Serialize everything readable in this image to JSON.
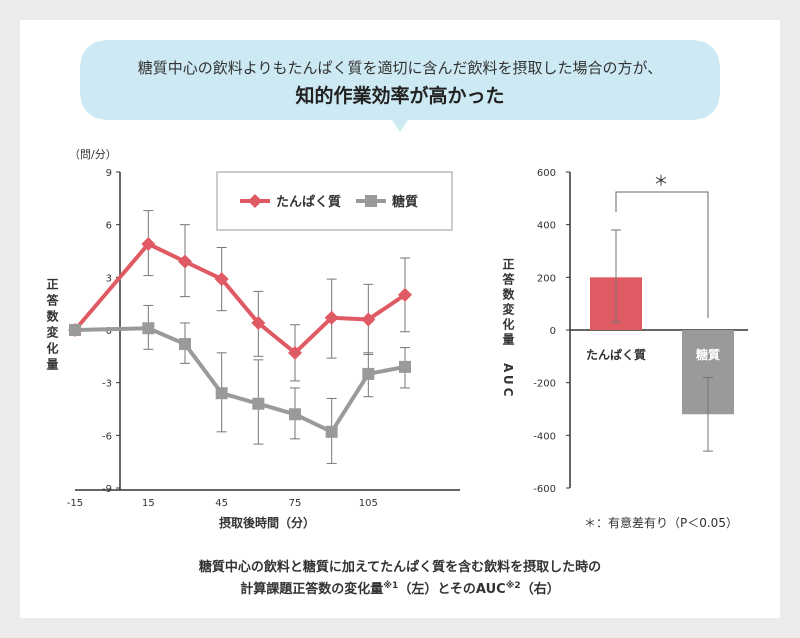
{
  "header": {
    "line1": "糖質中心の飲料よりもたんぱく質を適切に含んだ飲料を摂取した場合の方が、",
    "line2": "知的作業効率が高かった"
  },
  "caption": {
    "line1": "糖質中心の飲料と糖質に加えてたんぱく質を含む飲料を摂取した時の",
    "line2_a": "計算課題正答数の変化量",
    "note1": "※1",
    "line2_b": "（左）とそのAUC",
    "note2": "※2",
    "line2_c": "（右）"
  },
  "colors": {
    "protein": "#e05a63",
    "sugar": "#9a9a9a",
    "bubble": "#cde9f3",
    "axis": "#333333"
  },
  "chart_data": [
    {
      "type": "line",
      "unit_label": "（問/分）",
      "xlabel": "摂取後時間（分）",
      "ylabel": "正答数変化量",
      "ylim": [
        -9,
        9
      ],
      "yticks": [
        9,
        6,
        3,
        0,
        -3,
        -6,
        -9
      ],
      "xlim": [
        -15,
        120
      ],
      "xticks": [
        -15,
        15,
        45,
        75,
        105
      ],
      "x": [
        -15,
        15,
        30,
        45,
        60,
        75,
        90,
        105,
        120
      ],
      "legend": "top-right",
      "series": [
        {
          "name": "たんぱく質",
          "marker": "diamond",
          "values": [
            0,
            4.9,
            3.9,
            2.9,
            0.4,
            -1.3,
            0.7,
            0.6,
            2.0
          ],
          "err_high": [
            null,
            6.8,
            6.0,
            4.7,
            2.2,
            0.3,
            2.9,
            2.6,
            4.1
          ],
          "err_low": [
            null,
            3.1,
            1.9,
            1.1,
            -1.5,
            -2.9,
            -1.6,
            -1.4,
            -0.1
          ]
        },
        {
          "name": "糖質",
          "marker": "square",
          "values": [
            0,
            0.1,
            -0.8,
            -3.6,
            -4.2,
            -4.8,
            -5.8,
            -2.5,
            -2.1
          ],
          "err_high": [
            null,
            1.4,
            0.4,
            -1.3,
            -1.7,
            -3.3,
            -3.9,
            -1.3,
            -1.0
          ],
          "err_low": [
            null,
            -1.1,
            -1.9,
            -5.8,
            -6.5,
            -6.2,
            -7.6,
            -3.8,
            -3.3
          ]
        }
      ]
    },
    {
      "type": "bar",
      "ylabel": "正答数変化量　AUC",
      "ylim": [
        -600,
        600
      ],
      "yticks": [
        600,
        400,
        200,
        0,
        -200,
        -400,
        -600
      ],
      "categories": [
        "たんぱく質",
        "糖質"
      ],
      "values": [
        200,
        -320
      ],
      "err_high": [
        380,
        -180
      ],
      "err_low": [
        30,
        -460
      ],
      "significance": "＊",
      "footnote": "＊：有意差有り（P＜0.05）"
    }
  ]
}
